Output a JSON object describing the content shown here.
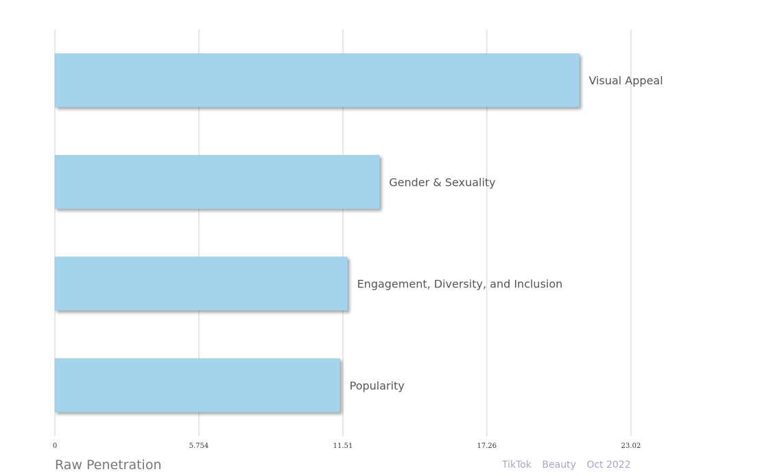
{
  "chart_data": {
    "type": "bar",
    "orientation": "horizontal",
    "categories": [
      "Visual Appeal",
      "Gender & Sexuality",
      "Engagement, Diversity, and Inclusion",
      "Popularity"
    ],
    "values": [
      20.95,
      12.97,
      11.69,
      11.39
    ],
    "xlabel": "Raw Penetration",
    "xlim": [
      0,
      23.02
    ],
    "xticks": [
      0,
      5.754,
      11.51,
      17.26,
      23.02
    ],
    "xtick_labels": [
      "0",
      "5.754",
      "11.51",
      "17.26",
      "23.02"
    ],
    "grid": "vertical",
    "bar_color": "#a4d4ec"
  },
  "footer": {
    "platform": "TikTok",
    "category": "Beauty",
    "period": "Oct 2022"
  }
}
